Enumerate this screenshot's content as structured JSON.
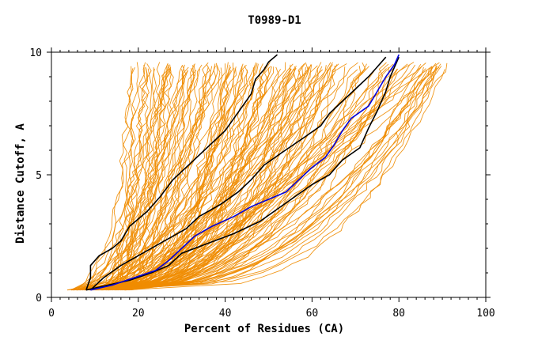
{
  "chart_data": {
    "type": "line",
    "title": "T0989-D1",
    "xlabel": "Percent of Residues (CA)",
    "ylabel": "Distance Cutoff, A",
    "xlim": [
      0,
      100
    ],
    "ylim": [
      0,
      10
    ],
    "x_ticks": [
      0,
      20,
      40,
      60,
      80,
      100
    ],
    "y_ticks": [
      0,
      5,
      10
    ],
    "grid": false,
    "legend": "none",
    "colors": {
      "background_curves": "#f08c00",
      "reference_curves": "#000000",
      "highlight_curve": "#0000dd",
      "frame": "#000000"
    },
    "series": [
      {
        "role": "reference",
        "color": "#000000",
        "points": [
          [
            8,
            0.3
          ],
          [
            9,
            0.8
          ],
          [
            9,
            1.3
          ],
          [
            11,
            1.7
          ],
          [
            14,
            2.0
          ],
          [
            16,
            2.3
          ],
          [
            18,
            2.9
          ],
          [
            22,
            3.5
          ],
          [
            25,
            4.1
          ],
          [
            28,
            4.8
          ],
          [
            31,
            5.3
          ],
          [
            34,
            5.8
          ],
          [
            37,
            6.3
          ],
          [
            40,
            6.8
          ],
          [
            42,
            7.3
          ],
          [
            44,
            7.8
          ],
          [
            46,
            8.3
          ],
          [
            47,
            8.9
          ],
          [
            49,
            9.3
          ],
          [
            50,
            9.6
          ],
          [
            52,
            9.9
          ]
        ]
      },
      {
        "role": "reference",
        "color": "#000000",
        "points": [
          [
            9,
            0.3
          ],
          [
            12,
            0.8
          ],
          [
            16,
            1.3
          ],
          [
            21,
            1.8
          ],
          [
            26,
            2.3
          ],
          [
            31,
            2.8
          ],
          [
            34,
            3.3
          ],
          [
            39,
            3.8
          ],
          [
            43,
            4.3
          ],
          [
            46,
            4.8
          ],
          [
            49,
            5.4
          ],
          [
            53,
            5.9
          ],
          [
            58,
            6.5
          ],
          [
            62,
            7.0
          ],
          [
            64,
            7.5
          ],
          [
            67,
            8.0
          ],
          [
            70,
            8.5
          ],
          [
            73,
            9.0
          ],
          [
            75,
            9.4
          ],
          [
            77,
            9.8
          ]
        ]
      },
      {
        "role": "reference",
        "color": "#000000",
        "points": [
          [
            8,
            0.3
          ],
          [
            13,
            0.5
          ],
          [
            18,
            0.7
          ],
          [
            23,
            1.0
          ],
          [
            27,
            1.3
          ],
          [
            30,
            1.8
          ],
          [
            36,
            2.2
          ],
          [
            42,
            2.6
          ],
          [
            48,
            3.1
          ],
          [
            52,
            3.6
          ],
          [
            56,
            4.1
          ],
          [
            60,
            4.6
          ],
          [
            64,
            5.0
          ],
          [
            67,
            5.6
          ],
          [
            71,
            6.1
          ],
          [
            73,
            6.9
          ],
          [
            75,
            7.6
          ],
          [
            77,
            8.4
          ],
          [
            78,
            9.0
          ],
          [
            80,
            9.8
          ]
        ]
      },
      {
        "role": "highlight",
        "color": "#0000dd",
        "points": [
          [
            9,
            0.3
          ],
          [
            14,
            0.5
          ],
          [
            19,
            0.8
          ],
          [
            24,
            1.1
          ],
          [
            27,
            1.5
          ],
          [
            30,
            2.0
          ],
          [
            33,
            2.5
          ],
          [
            37,
            2.9
          ],
          [
            42,
            3.3
          ],
          [
            46,
            3.7
          ],
          [
            50,
            4.0
          ],
          [
            54,
            4.3
          ],
          [
            57,
            4.8
          ],
          [
            60,
            5.3
          ],
          [
            63,
            5.7
          ],
          [
            65,
            6.2
          ],
          [
            67,
            6.8
          ],
          [
            69,
            7.3
          ],
          [
            73,
            7.8
          ],
          [
            75,
            8.4
          ],
          [
            77,
            9.0
          ],
          [
            79,
            9.5
          ],
          [
            80,
            9.9
          ]
        ]
      }
    ]
  }
}
